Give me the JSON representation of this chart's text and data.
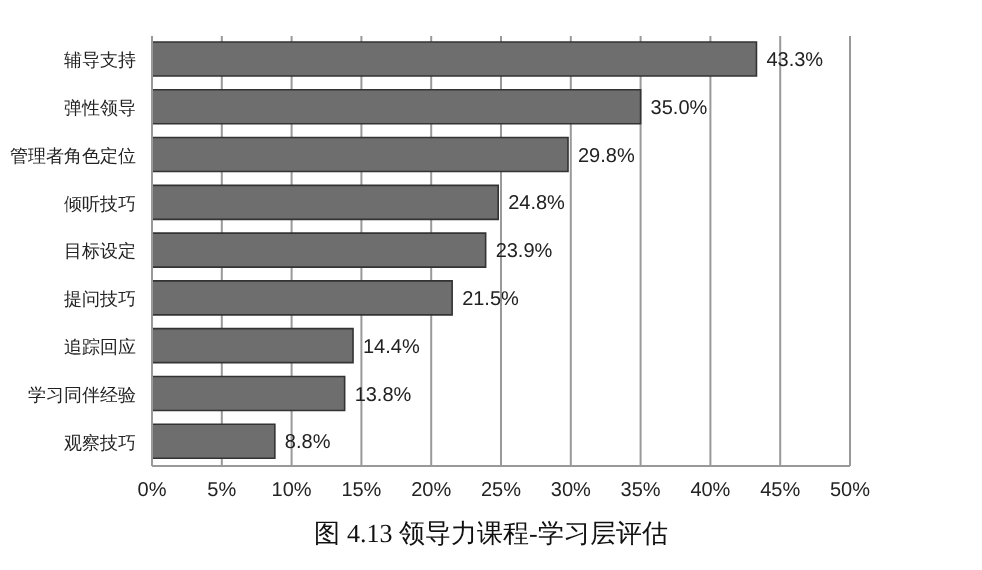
{
  "chart_data": {
    "type": "bar",
    "orientation": "horizontal",
    "title": "图 4.13 领导力课程-学习层评估",
    "categories": [
      "辅导支持",
      "弹性领导",
      "管理者角色定位",
      "倾听技巧",
      "目标设定",
      "提问技巧",
      "追踪回应",
      "学习同伴经验",
      "观察技巧"
    ],
    "values": [
      43.3,
      35.0,
      29.8,
      24.8,
      23.9,
      21.5,
      14.4,
      13.8,
      8.8
    ],
    "value_labels": [
      "43.3%",
      "35.0%",
      "29.8%",
      "24.8%",
      "23.9%",
      "21.5%",
      "14.4%",
      "13.8%",
      "8.8%"
    ],
    "color": "#6e6e6e",
    "xlim": [
      0,
      50
    ],
    "xticks": [
      {
        "value": 0,
        "label": "0%"
      },
      {
        "value": 5,
        "label": "5%"
      },
      {
        "value": 10,
        "label": "10%"
      },
      {
        "value": 15,
        "label": "15%"
      },
      {
        "value": 20,
        "label": "20%"
      },
      {
        "value": 25,
        "label": "25%"
      },
      {
        "value": 30,
        "label": "30%"
      },
      {
        "value": 35,
        "label": "35%"
      },
      {
        "value": 40,
        "label": "40%"
      },
      {
        "value": 45,
        "label": "45%"
      },
      {
        "value": 50,
        "label": "50%"
      }
    ],
    "grid": "x"
  }
}
